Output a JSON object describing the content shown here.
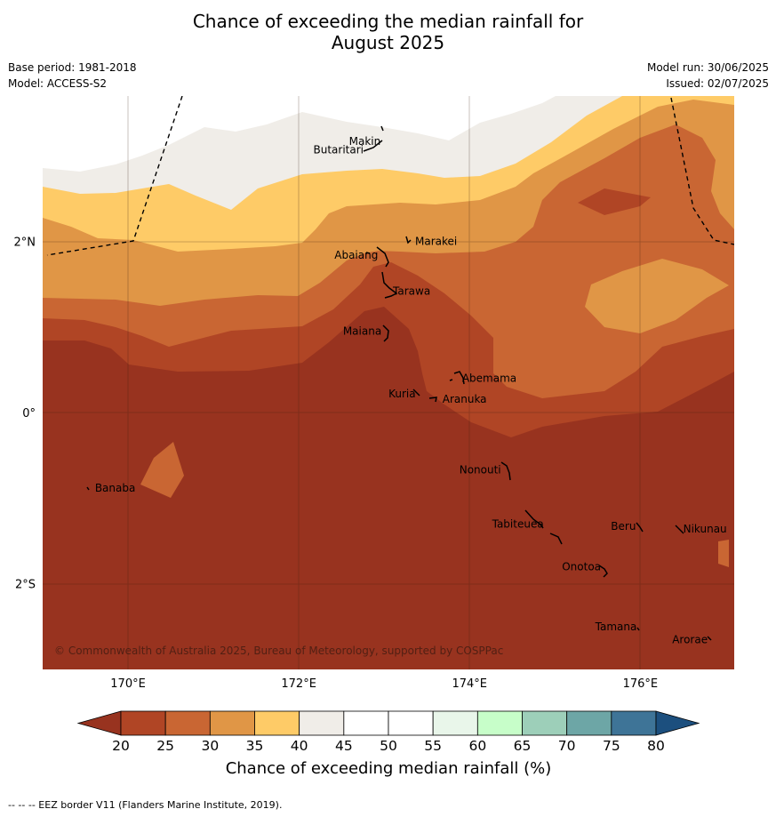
{
  "title_line1": "Chance of exceeding the median rainfall for",
  "title_line2": "August 2025",
  "base_period": "Base period: 1981-2018",
  "model": "Model: ACCESS-S2",
  "model_run": "Model run: 30/06/2025",
  "issued": "Issued: 02/07/2025",
  "copyright": "© Commonwealth of Australia 2025, Bureau of Meteorology, supported by COSPPac",
  "footer": "--  --  -- EEZ border V11 (Flanders Marine Institute, 2019).",
  "axes": {
    "x_ticks": [
      {
        "value": 170,
        "label": "170°E"
      },
      {
        "value": 172,
        "label": "172°E"
      },
      {
        "value": 174,
        "label": "174°E"
      },
      {
        "value": 176,
        "label": "176°E"
      }
    ],
    "y_ticks": [
      {
        "value": 2,
        "label": "2°N"
      },
      {
        "value": 0,
        "label": "0°"
      },
      {
        "value": -2,
        "label": "2°S"
      }
    ],
    "lon_range": [
      169,
      177.1
    ],
    "lat_range": [
      -3.0,
      3.7
    ],
    "grid": true
  },
  "places": [
    {
      "name": "Makin",
      "lon": 172.99,
      "lat": 3.17
    },
    {
      "name": "Butaritari",
      "lon": 172.79,
      "lat": 3.07
    },
    {
      "name": "Marakei",
      "lon": 173.3,
      "lat": 2.0
    },
    {
      "name": "Abaiang",
      "lon": 172.96,
      "lat": 1.84
    },
    {
      "name": "Tarawa",
      "lon": 173.04,
      "lat": 1.42
    },
    {
      "name": "Maiana",
      "lon": 173.0,
      "lat": 0.95
    },
    {
      "name": "Abemama",
      "lon": 173.85,
      "lat": 0.4
    },
    {
      "name": "Kuria",
      "lon": 173.4,
      "lat": 0.22
    },
    {
      "name": "Aranuka",
      "lon": 173.62,
      "lat": 0.16
    },
    {
      "name": "Nonouti",
      "lon": 174.4,
      "lat": -0.67
    },
    {
      "name": "Banaba",
      "lon": 169.55,
      "lat": -0.88
    },
    {
      "name": "Tabiteuea",
      "lon": 174.9,
      "lat": -1.3
    },
    {
      "name": "Beru",
      "lon": 175.98,
      "lat": -1.33
    },
    {
      "name": "Nikunau",
      "lon": 176.44,
      "lat": -1.36
    },
    {
      "name": "Onotoa",
      "lon": 175.57,
      "lat": -1.8
    },
    {
      "name": "Tamana",
      "lon": 175.99,
      "lat": -2.5
    },
    {
      "name": "Arorae",
      "lon": 176.82,
      "lat": -2.65
    }
  ],
  "colorbar": {
    "label": "Chance of exceeding median rainfall (%)",
    "ticks": [
      "20",
      "25",
      "30",
      "35",
      "40",
      "45",
      "50",
      "55",
      "60",
      "65",
      "70",
      "75",
      "80"
    ],
    "under_color": "#98331f",
    "over_color": "#1c4f7e",
    "bins": [
      {
        "range": "20-25",
        "color": "#b04525"
      },
      {
        "range": "25-30",
        "color": "#c96633"
      },
      {
        "range": "30-35",
        "color": "#e09646"
      },
      {
        "range": "35-40",
        "color": "#fecb67"
      },
      {
        "range": "40-45",
        "color": "#f0ede8"
      },
      {
        "range": "45-50",
        "color": "#ffffff"
      },
      {
        "range": "50-55",
        "color": "#ffffff"
      },
      {
        "range": "55-60",
        "color": "#e9f6ea"
      },
      {
        "range": "60-65",
        "color": "#c7fec9"
      },
      {
        "range": "65-70",
        "color": "#9dcfb9"
      },
      {
        "range": "70-75",
        "color": "#6da6a6"
      },
      {
        "range": "75-80",
        "color": "#3e7497"
      }
    ]
  }
}
